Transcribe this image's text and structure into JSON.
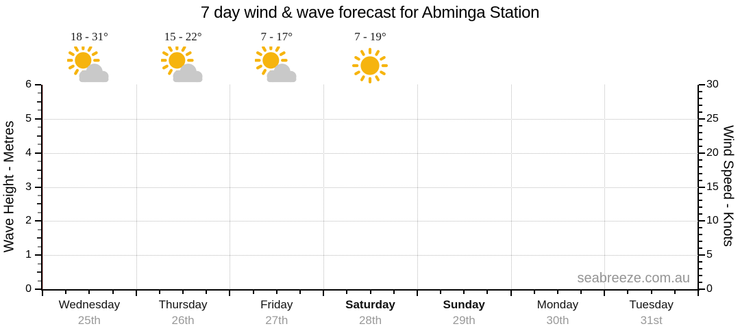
{
  "watermark": "seabreeze.com.au",
  "colors": {
    "sun": "#F6B40E",
    "cloud": "#C9C9C9",
    "grid": "#B8B8B8",
    "axis": "#000000",
    "date_text": "#999999",
    "watermark_text": "#949494"
  },
  "forecast": {
    "entries": [
      {
        "temp": "18 - 31°",
        "icon": "sun-behind-cloud-icon"
      },
      {
        "temp": "15 - 22°",
        "icon": "sun-behind-cloud-icon"
      },
      {
        "temp": "7 - 17°",
        "icon": "sun-behind-cloud-icon"
      },
      {
        "temp": "7 - 19°",
        "icon": "sun-icon"
      }
    ]
  },
  "chart_data": {
    "type": "line",
    "title": "7 day wind & wave forecast for Abminga Station",
    "series": [],
    "x_axis": {
      "days": [
        {
          "name": "Wednesday",
          "date": "25th",
          "weekend": false
        },
        {
          "name": "Thursday",
          "date": "26th",
          "weekend": false
        },
        {
          "name": "Friday",
          "date": "27th",
          "weekend": false
        },
        {
          "name": "Saturday",
          "date": "28th",
          "weekend": true
        },
        {
          "name": "Sunday",
          "date": "29th",
          "weekend": true
        },
        {
          "name": "Monday",
          "date": "30th",
          "weekend": false
        },
        {
          "name": "Tuesday",
          "date": "31st",
          "weekend": false
        }
      ],
      "minor_ticks_per_day": 4
    },
    "left_axis": {
      "label": "Wave Height - Metres",
      "min": 0,
      "max": 6,
      "major_tick_step": 1,
      "minor_tick_step": 0.25,
      "tick_labels": [
        "0",
        "1",
        "2",
        "3",
        "4",
        "5",
        "6"
      ],
      "gridlines": [
        1,
        2,
        3,
        4,
        5
      ]
    },
    "right_axis": {
      "label": "Wind Speed - Knots",
      "min": 0,
      "max": 30,
      "major_tick_step": 5,
      "minor_tick_step": 1,
      "tick_labels": [
        "0",
        "5",
        "10",
        "15",
        "20",
        "25",
        "30"
      ],
      "gridlines": [
        5,
        10,
        15,
        20,
        25
      ]
    },
    "grid_style": "dotted",
    "legend": null
  }
}
